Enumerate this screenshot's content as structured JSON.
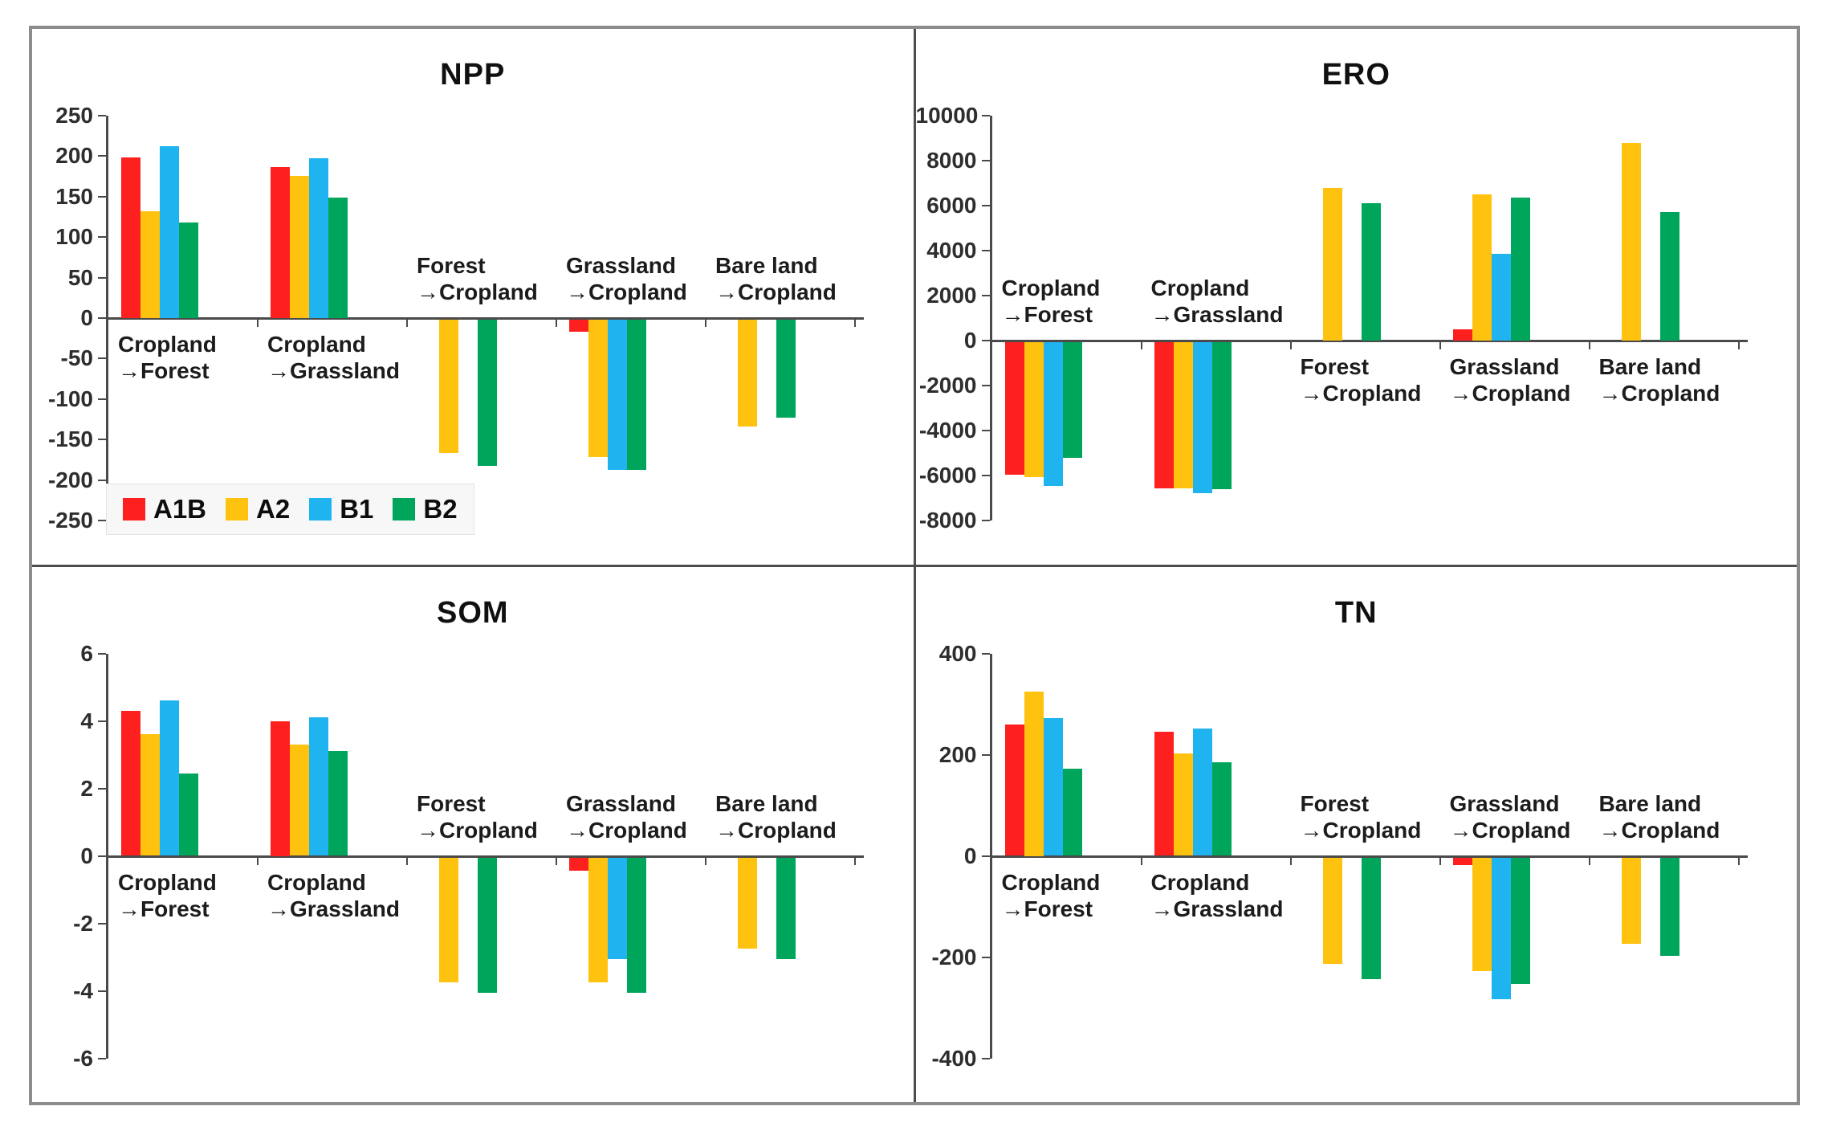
{
  "figure": {
    "border_color": "#8c8c8c",
    "background": "#ffffff",
    "series": [
      {
        "name": "A1B",
        "color": "#FE1F1F"
      },
      {
        "name": "A2",
        "color": "#FFC20E"
      },
      {
        "name": "B1",
        "color": "#1FB4F0"
      },
      {
        "name": "B2",
        "color": "#00A55C"
      }
    ],
    "legend": {
      "items": [
        "A1B",
        "A2",
        "B1",
        "B2"
      ],
      "position": "inside-bottom-left-of-NPP"
    }
  },
  "chart_data": [
    {
      "type": "bar",
      "title": "NPP",
      "categories": [
        "Cropland→Forest",
        "Cropland→Grassland",
        "Forest→Cropland",
        "Grassland→Cropland",
        "Bare land→Cropland"
      ],
      "category_label_lines": [
        [
          "Cropland",
          "→Forest"
        ],
        [
          "Cropland",
          "→Grassland"
        ],
        [
          "Forest",
          "→Cropland"
        ],
        [
          "Grassland",
          "→Cropland"
        ],
        [
          "Bare land",
          "→Cropland"
        ]
      ],
      "ylim": [
        -250,
        250
      ],
      "yticks": [
        250,
        200,
        150,
        100,
        50,
        0,
        -50,
        -100,
        -150,
        -200,
        -250
      ],
      "grid": false,
      "legend_inside": true,
      "series": [
        {
          "name": "A1B",
          "values": [
            198,
            187,
            null,
            -15,
            null
          ]
        },
        {
          "name": "A2",
          "values": [
            132,
            176,
            -165,
            -170,
            -132
          ]
        },
        {
          "name": "B1",
          "values": [
            212,
            197,
            null,
            -186,
            null
          ]
        },
        {
          "name": "B2",
          "values": [
            118,
            149,
            -181,
            -186,
            -121
          ]
        }
      ]
    },
    {
      "type": "bar",
      "title": "ERO",
      "categories": [
        "Cropland→Forest",
        "Cropland→Grassland",
        "Forest→Cropland",
        "Grassland→Cropland",
        "Bare land→Cropland"
      ],
      "category_label_lines": [
        [
          "Cropland",
          "→Forest"
        ],
        [
          "Cropland",
          "→Grassland"
        ],
        [
          "Forest",
          "→Cropland"
        ],
        [
          "Grassland",
          "→Cropland"
        ],
        [
          "Bare land",
          "→Cropland"
        ]
      ],
      "ylim": [
        -8000,
        10000
      ],
      "yticks": [
        10000,
        8000,
        6000,
        4000,
        2000,
        0,
        -2000,
        -4000,
        -6000,
        -8000
      ],
      "grid": false,
      "legend_inside": false,
      "series": [
        {
          "name": "A1B",
          "values": [
            -5900,
            -6500,
            null,
            500,
            null
          ]
        },
        {
          "name": "A2",
          "values": [
            -6000,
            -6500,
            6800,
            6500,
            8800
          ]
        },
        {
          "name": "B1",
          "values": [
            -6400,
            -6700,
            null,
            3850,
            null
          ]
        },
        {
          "name": "B2",
          "values": [
            -5150,
            -6550,
            6100,
            6350,
            5700
          ]
        }
      ]
    },
    {
      "type": "bar",
      "title": "SOM",
      "categories": [
        "Cropland→Forest",
        "Cropland→Grassland",
        "Forest→Cropland",
        "Grassland→Cropland",
        "Bare land→Cropland"
      ],
      "category_label_lines": [
        [
          "Cropland",
          "→Forest"
        ],
        [
          "Cropland",
          "→Grassland"
        ],
        [
          "Forest",
          "→Cropland"
        ],
        [
          "Grassland",
          "→Cropland"
        ],
        [
          "Bare land",
          "→Cropland"
        ]
      ],
      "ylim": [
        -6,
        6
      ],
      "yticks": [
        6,
        4,
        2,
        0,
        -2,
        -4,
        -6
      ],
      "grid": false,
      "legend_inside": false,
      "series": [
        {
          "name": "A1B",
          "values": [
            4.3,
            4.0,
            null,
            -0.4,
            null
          ]
        },
        {
          "name": "A2",
          "values": [
            3.6,
            3.3,
            -3.7,
            -3.7,
            -2.7
          ]
        },
        {
          "name": "B1",
          "values": [
            4.6,
            4.1,
            null,
            -3.0,
            null
          ]
        },
        {
          "name": "B2",
          "values": [
            2.45,
            3.1,
            -4.0,
            -4.0,
            -3.0
          ]
        }
      ]
    },
    {
      "type": "bar",
      "title": "TN",
      "categories": [
        "Cropland→Forest",
        "Cropland→Grassland",
        "Forest→Cropland",
        "Grassland→Cropland",
        "Bare land→Cropland"
      ],
      "category_label_lines": [
        [
          "Cropland",
          "→Forest"
        ],
        [
          "Cropland",
          "→Grassland"
        ],
        [
          "Forest",
          "→Cropland"
        ],
        [
          "Grassland",
          "→Cropland"
        ],
        [
          "Bare land",
          "→Cropland"
        ]
      ],
      "ylim": [
        -400,
        400
      ],
      "yticks": [
        400,
        200,
        0,
        -200,
        -400
      ],
      "grid": false,
      "legend_inside": false,
      "series": [
        {
          "name": "A1B",
          "values": [
            260,
            245,
            null,
            -15,
            null
          ]
        },
        {
          "name": "A2",
          "values": [
            325,
            203,
            -210,
            -225,
            -170
          ]
        },
        {
          "name": "B1",
          "values": [
            272,
            252,
            null,
            -280,
            null
          ]
        },
        {
          "name": "B2",
          "values": [
            172,
            185,
            -240,
            -250,
            -195
          ]
        }
      ]
    }
  ]
}
